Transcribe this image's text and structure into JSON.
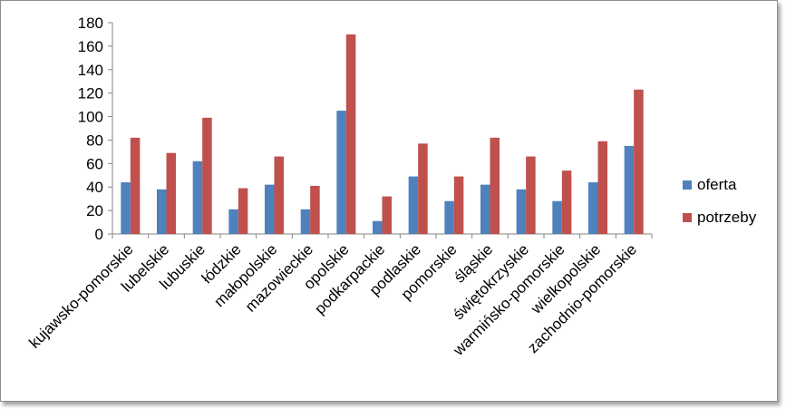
{
  "chart_data": {
    "type": "bar",
    "categories": [
      "kujawsko-pomorskie",
      "lubelskie",
      "lubuskie",
      "łódzkie",
      "małopolskie",
      "mazowieckie",
      "opolskie",
      "podkarpackie",
      "podlaskie",
      "pomorskie",
      "śląskie",
      "świętokrzyskie",
      "warmińsko-pomorskie",
      "wielkopolskie",
      "zachodnio-pomorskie"
    ],
    "series": [
      {
        "name": "oferta",
        "color": "#4f81bd",
        "values": [
          44,
          38,
          62,
          21,
          42,
          21,
          105,
          11,
          49,
          28,
          42,
          38,
          28,
          44,
          75
        ]
      },
      {
        "name": "potrzeby",
        "color": "#c0504d",
        "values": [
          82,
          69,
          99,
          39,
          66,
          41,
          170,
          32,
          77,
          49,
          82,
          66,
          54,
          79,
          123
        ]
      }
    ],
    "ylim": [
      0,
      180
    ],
    "yticks": [
      0,
      20,
      40,
      60,
      80,
      100,
      120,
      140,
      160,
      180
    ],
    "grid": false,
    "legend": "right",
    "title": "",
    "xlabel": "",
    "ylabel": ""
  }
}
